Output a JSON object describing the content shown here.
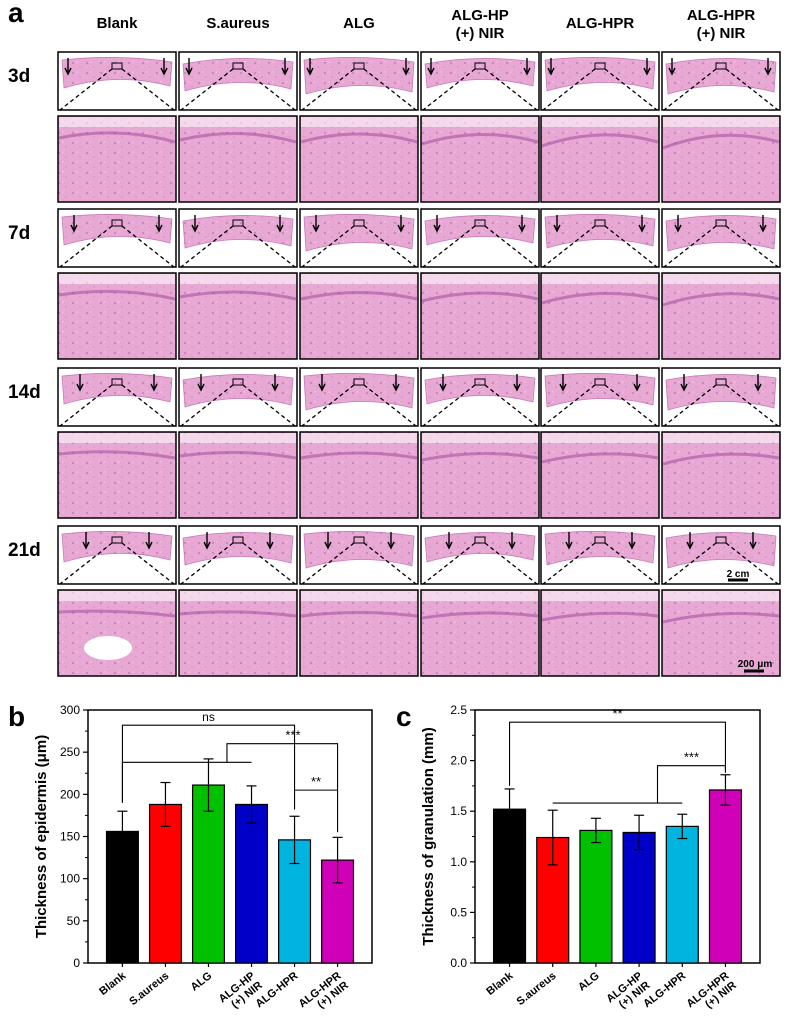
{
  "panel_letters": {
    "a": "a",
    "b": "b",
    "c": "c"
  },
  "histology": {
    "groups": [
      {
        "line1": "Blank",
        "line2": ""
      },
      {
        "line1": "S.aureus",
        "line2": ""
      },
      {
        "line1": "ALG",
        "line2": ""
      },
      {
        "line1": "ALG-HP",
        "line2": "(+) NIR"
      },
      {
        "line1": "ALG-HPR",
        "line2": ""
      },
      {
        "line1": "ALG-HPR",
        "line2": "(+) NIR"
      }
    ],
    "days": [
      "3d",
      "7d",
      "14d",
      "21d"
    ],
    "scale_bar_overview": "2 cm",
    "scale_bar_zoom": "200 μm"
  },
  "chart_data": [
    {
      "type": "bar",
      "panel": "b",
      "title": "",
      "xlabel": "",
      "ylabel": "Thickness of epidermis (μm)",
      "categories": [
        "Blank",
        "S.aureus",
        "ALG",
        "ALG-HP\n(+) NIR",
        "ALG-HPR",
        "ALG-HPR\n(+) NIR"
      ],
      "values": [
        156,
        188,
        211,
        188,
        146,
        122
      ],
      "errors": [
        24,
        26,
        31,
        22,
        28,
        27
      ],
      "colors": [
        "#000000",
        "#ff0000",
        "#00c000",
        "#0000c8",
        "#00b4e0",
        "#d000b8"
      ],
      "ylim": [
        0,
        300
      ],
      "yticks": [
        0,
        50,
        100,
        150,
        200,
        250,
        300
      ],
      "significance": [
        {
          "label": "ns",
          "from": 0,
          "to": 4
        },
        {
          "label": "***",
          "from_group": [
            0,
            3
          ],
          "to": 5
        },
        {
          "label": "**",
          "from": 4,
          "to": 5
        }
      ]
    },
    {
      "type": "bar",
      "panel": "c",
      "title": "",
      "xlabel": "",
      "ylabel": "Thickness of granulation (mm)",
      "categories": [
        "Blank",
        "S.aureus",
        "ALG",
        "ALG-HP\n(+) NIR",
        "ALG-HPR",
        "ALG-HPR\n(+) NIR"
      ],
      "values": [
        1.52,
        1.24,
        1.31,
        1.29,
        1.35,
        1.71
      ],
      "errors": [
        0.2,
        0.27,
        0.12,
        0.17,
        0.12,
        0.15
      ],
      "colors": [
        "#000000",
        "#ff0000",
        "#00c000",
        "#0000c8",
        "#00b4e0",
        "#d000b8"
      ],
      "ylim": [
        0,
        2.5
      ],
      "yticks": [
        0.0,
        0.5,
        1.0,
        1.5,
        2.0,
        2.5
      ],
      "significance": [
        {
          "label": "**",
          "from": 0,
          "to": 5
        },
        {
          "label": "***",
          "from_group": [
            1,
            4
          ],
          "to": 5
        }
      ]
    }
  ]
}
